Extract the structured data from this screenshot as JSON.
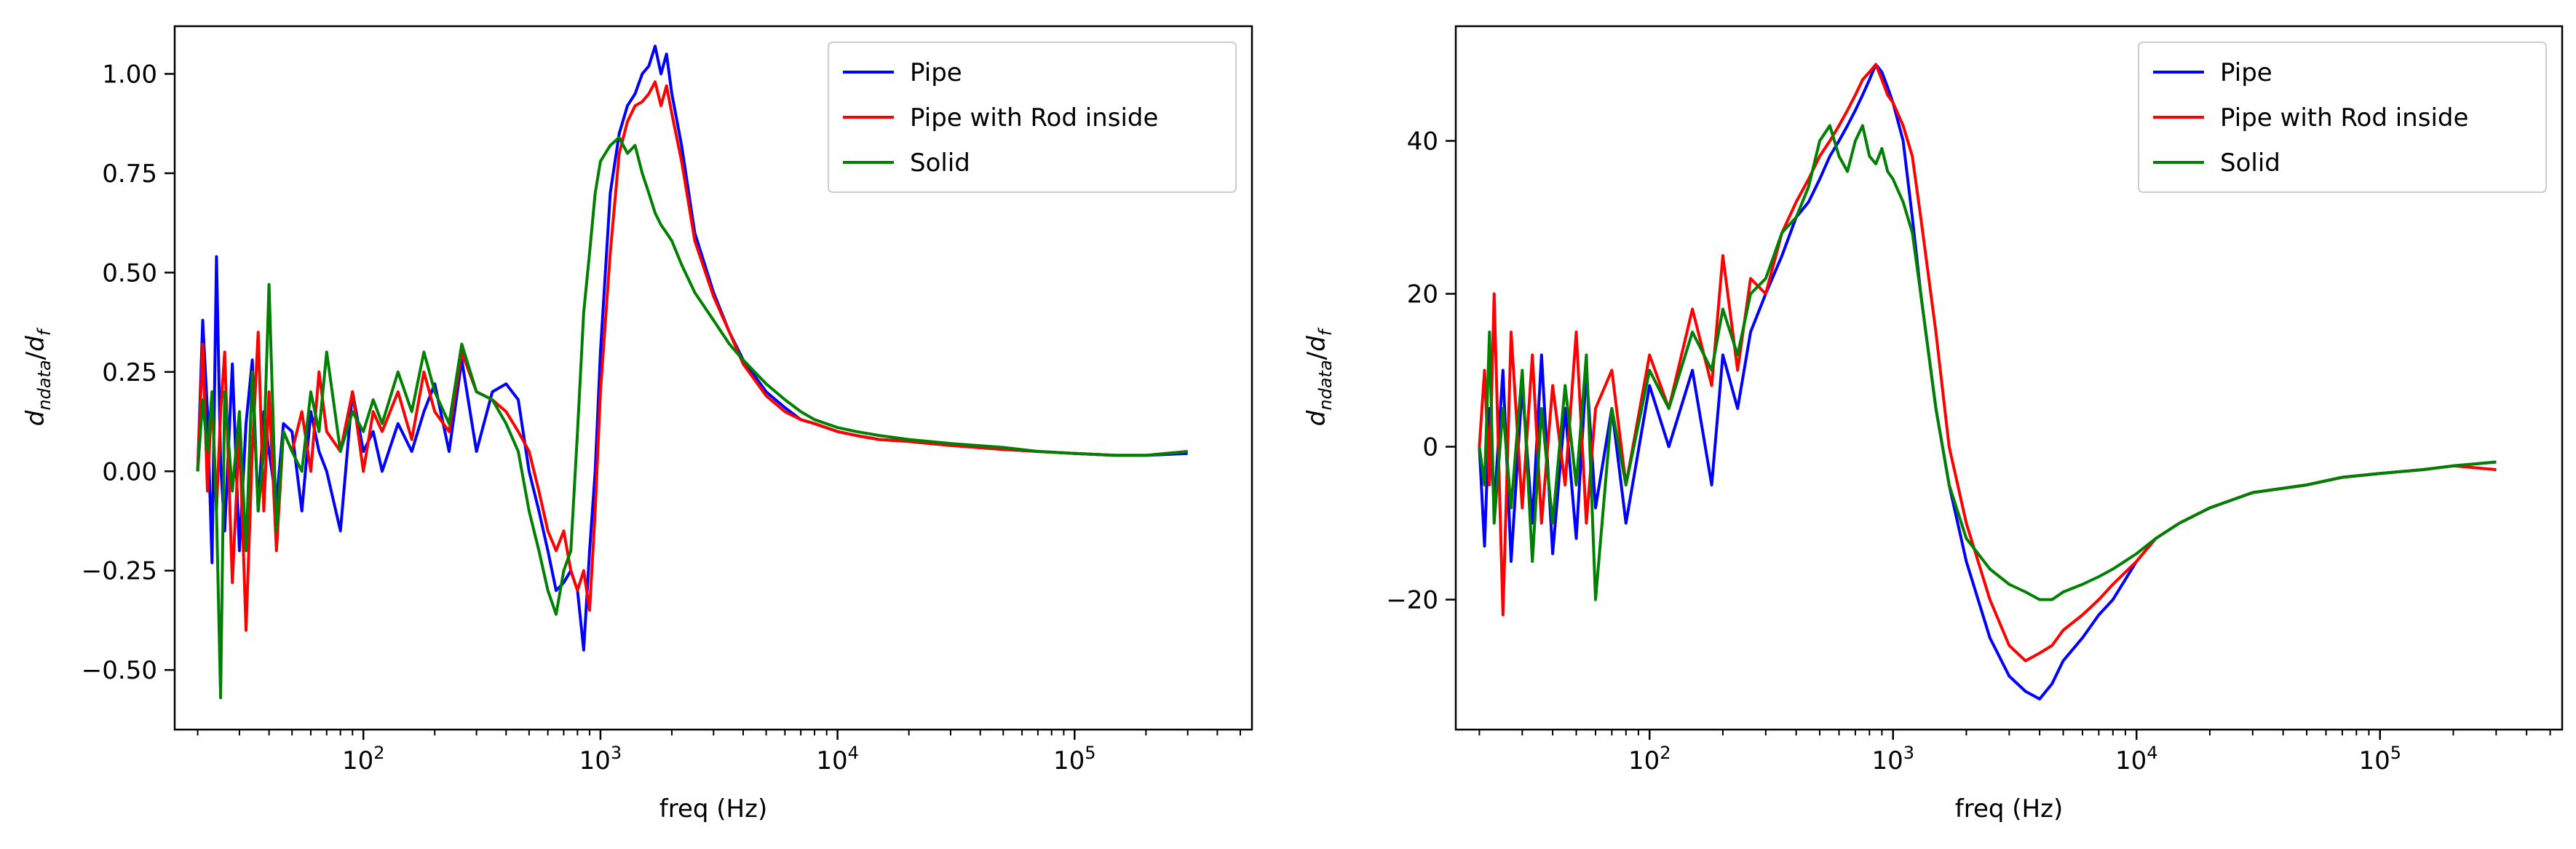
{
  "chart_data": [
    {
      "type": "line",
      "xlabel": "freq (Hz)",
      "ylabel": "d_{ndata}/d_f",
      "xscale": "log",
      "xlim": [
        16,
        560000
      ],
      "ylim": [
        -0.65,
        1.12
      ],
      "xticks": [
        {
          "value": 100,
          "base": "10",
          "exp": "2"
        },
        {
          "value": 1000,
          "base": "10",
          "exp": "3"
        },
        {
          "value": 10000,
          "base": "10",
          "exp": "4"
        },
        {
          "value": 100000,
          "base": "10",
          "exp": "5"
        }
      ],
      "yticks": [
        {
          "value": -0.5,
          "label": "−0.50"
        },
        {
          "value": -0.25,
          "label": "−0.25"
        },
        {
          "value": 0.0,
          "label": "0.00"
        },
        {
          "value": 0.25,
          "label": "0.25"
        },
        {
          "value": 0.5,
          "label": "0.50"
        },
        {
          "value": 0.75,
          "label": "0.75"
        },
        {
          "value": 1.0,
          "label": "1.00"
        }
      ],
      "legend_position": "upper right",
      "grid": false,
      "series": [
        {
          "name": "Pipe",
          "color": "#0000ff",
          "x": [
            20,
            21,
            22,
            23,
            24,
            25,
            26,
            28,
            30,
            32,
            34,
            36,
            38,
            40,
            43,
            46,
            50,
            55,
            60,
            65,
            70,
            80,
            90,
            100,
            110,
            120,
            140,
            160,
            180,
            200,
            230,
            260,
            300,
            350,
            400,
            450,
            500,
            550,
            600,
            650,
            700,
            750,
            800,
            850,
            900,
            950,
            1000,
            1100,
            1200,
            1300,
            1400,
            1500,
            1600,
            1700,
            1800,
            1900,
            2000,
            2200,
            2500,
            3000,
            3500,
            4000,
            5000,
            6000,
            7000,
            8000,
            10000,
            12000,
            15000,
            20000,
            30000,
            50000,
            70000,
            100000,
            150000,
            200000,
            300000
          ],
          "y": [
            0.0,
            0.38,
            0.15,
            -0.23,
            0.54,
            0.02,
            -0.15,
            0.27,
            -0.2,
            0.12,
            0.28,
            -0.1,
            0.15,
            0.05,
            -0.08,
            0.12,
            0.1,
            -0.1,
            0.15,
            0.05,
            0.0,
            -0.15,
            0.2,
            0.05,
            0.1,
            0.0,
            0.12,
            0.05,
            0.15,
            0.22,
            0.05,
            0.28,
            0.05,
            0.2,
            0.22,
            0.18,
            0.0,
            -0.1,
            -0.2,
            -0.3,
            -0.28,
            -0.25,
            -0.3,
            -0.45,
            -0.2,
            0.0,
            0.3,
            0.7,
            0.85,
            0.92,
            0.95,
            1.0,
            1.02,
            1.07,
            1.0,
            1.05,
            0.95,
            0.82,
            0.6,
            0.45,
            0.35,
            0.28,
            0.2,
            0.16,
            0.13,
            0.12,
            0.1,
            0.09,
            0.08,
            0.075,
            0.065,
            0.055,
            0.05,
            0.045,
            0.04,
            0.04,
            0.045
          ]
        },
        {
          "name": "Pipe with Rod inside",
          "color": "#ff0000",
          "x": [
            20,
            21,
            22,
            23,
            24,
            25,
            26,
            28,
            30,
            32,
            34,
            36,
            38,
            40,
            43,
            46,
            50,
            55,
            60,
            65,
            70,
            80,
            90,
            100,
            110,
            120,
            140,
            160,
            180,
            200,
            230,
            260,
            300,
            350,
            400,
            450,
            500,
            550,
            600,
            650,
            700,
            750,
            800,
            850,
            900,
            950,
            1000,
            1100,
            1200,
            1300,
            1400,
            1500,
            1600,
            1700,
            1800,
            1900,
            2000,
            2200,
            2500,
            3000,
            3500,
            4000,
            5000,
            6000,
            7000,
            8000,
            10000,
            12000,
            15000,
            20000,
            30000,
            50000,
            70000,
            100000,
            150000,
            200000,
            300000
          ],
          "y": [
            0.0,
            0.32,
            -0.05,
            0.2,
            -0.1,
            0.15,
            0.3,
            -0.28,
            0.1,
            -0.4,
            0.05,
            0.35,
            -0.1,
            0.2,
            -0.2,
            0.1,
            0.05,
            0.15,
            0.0,
            0.25,
            0.1,
            0.05,
            0.2,
            0.0,
            0.15,
            0.1,
            0.2,
            0.08,
            0.25,
            0.15,
            0.1,
            0.3,
            0.2,
            0.18,
            0.15,
            0.1,
            0.05,
            -0.05,
            -0.15,
            -0.2,
            -0.15,
            -0.25,
            -0.3,
            -0.25,
            -0.35,
            -0.1,
            0.2,
            0.55,
            0.8,
            0.88,
            0.92,
            0.93,
            0.95,
            0.98,
            0.92,
            0.97,
            0.9,
            0.78,
            0.58,
            0.44,
            0.35,
            0.27,
            0.19,
            0.15,
            0.13,
            0.12,
            0.1,
            0.09,
            0.08,
            0.075,
            0.065,
            0.055,
            0.05,
            0.045,
            0.04,
            0.04,
            0.05
          ]
        },
        {
          "name": "Solid",
          "color": "#008000",
          "x": [
            20,
            21,
            22,
            23,
            24,
            25,
            26,
            28,
            30,
            32,
            34,
            36,
            38,
            40,
            43,
            46,
            50,
            55,
            60,
            65,
            70,
            80,
            90,
            100,
            110,
            120,
            140,
            160,
            180,
            200,
            230,
            260,
            300,
            350,
            400,
            450,
            500,
            550,
            600,
            650,
            700,
            750,
            800,
            850,
            900,
            950,
            1000,
            1100,
            1200,
            1300,
            1400,
            1500,
            1600,
            1700,
            1800,
            1900,
            2000,
            2200,
            2500,
            3000,
            3500,
            4000,
            5000,
            6000,
            7000,
            8000,
            10000,
            12000,
            15000,
            20000,
            30000,
            50000,
            70000,
            100000,
            150000,
            200000,
            300000
          ],
          "y": [
            0.0,
            0.18,
            0.05,
            0.2,
            -0.1,
            -0.57,
            0.2,
            -0.05,
            0.15,
            -0.2,
            0.25,
            -0.1,
            0.05,
            0.47,
            -0.15,
            0.1,
            0.05,
            0.0,
            0.2,
            0.1,
            0.3,
            0.05,
            0.15,
            0.1,
            0.18,
            0.12,
            0.25,
            0.15,
            0.3,
            0.2,
            0.12,
            0.32,
            0.2,
            0.18,
            0.12,
            0.05,
            -0.1,
            -0.2,
            -0.3,
            -0.36,
            -0.25,
            -0.2,
            0.1,
            0.4,
            0.55,
            0.7,
            0.78,
            0.82,
            0.84,
            0.8,
            0.82,
            0.75,
            0.7,
            0.65,
            0.62,
            0.6,
            0.58,
            0.52,
            0.45,
            0.38,
            0.32,
            0.28,
            0.22,
            0.18,
            0.15,
            0.13,
            0.11,
            0.1,
            0.09,
            0.08,
            0.07,
            0.06,
            0.05,
            0.045,
            0.04,
            0.04,
            0.05
          ]
        }
      ]
    },
    {
      "type": "line",
      "xlabel": "freq (Hz)",
      "ylabel": "d_{ndata}/d_f",
      "xscale": "log",
      "xlim": [
        16,
        560000
      ],
      "ylim": [
        -37,
        55
      ],
      "xticks": [
        {
          "value": 100,
          "base": "10",
          "exp": "2"
        },
        {
          "value": 1000,
          "base": "10",
          "exp": "3"
        },
        {
          "value": 10000,
          "base": "10",
          "exp": "4"
        },
        {
          "value": 100000,
          "base": "10",
          "exp": "5"
        }
      ],
      "yticks": [
        {
          "value": -20,
          "label": "−20"
        },
        {
          "value": 0,
          "label": "0"
        },
        {
          "value": 20,
          "label": "20"
        },
        {
          "value": 40,
          "label": "40"
        }
      ],
      "legend_position": "upper right",
      "grid": false,
      "series": [
        {
          "name": "Pipe",
          "color": "#0000ff",
          "x": [
            20,
            21,
            22,
            23,
            25,
            27,
            30,
            33,
            36,
            40,
            45,
            50,
            55,
            60,
            70,
            80,
            100,
            120,
            150,
            180,
            200,
            230,
            260,
            300,
            350,
            400,
            450,
            500,
            550,
            600,
            650,
            700,
            750,
            800,
            850,
            900,
            950,
            1000,
            1100,
            1200,
            1300,
            1500,
            1700,
            2000,
            2500,
            3000,
            3500,
            4000,
            4500,
            5000,
            6000,
            7000,
            8000,
            10000,
            12000,
            15000,
            20000,
            30000,
            50000,
            70000,
            100000,
            150000,
            200000,
            300000
          ],
          "y": [
            0,
            -13,
            5,
            -8,
            10,
            -15,
            8,
            -10,
            12,
            -14,
            5,
            -12,
            10,
            -8,
            5,
            -10,
            8,
            0,
            10,
            -5,
            12,
            5,
            15,
            20,
            25,
            30,
            32,
            35,
            38,
            40,
            42,
            44,
            46,
            48,
            50,
            49,
            47,
            45,
            40,
            30,
            20,
            5,
            -5,
            -15,
            -25,
            -30,
            -32,
            -33,
            -31,
            -28,
            -25,
            -22,
            -20,
            -15,
            -12,
            -10,
            -8,
            -6,
            -5,
            -4,
            -3.5,
            -3,
            -2.5,
            -2
          ]
        },
        {
          "name": "Pipe with Rod inside",
          "color": "#ff0000",
          "x": [
            20,
            21,
            22,
            23,
            25,
            27,
            30,
            33,
            36,
            40,
            45,
            50,
            55,
            60,
            70,
            80,
            100,
            120,
            150,
            180,
            200,
            230,
            260,
            300,
            350,
            400,
            450,
            500,
            550,
            600,
            650,
            700,
            750,
            800,
            850,
            900,
            950,
            1000,
            1100,
            1200,
            1300,
            1500,
            1700,
            2000,
            2500,
            3000,
            3500,
            4000,
            4500,
            5000,
            6000,
            7000,
            8000,
            10000,
            12000,
            15000,
            20000,
            30000,
            50000,
            70000,
            100000,
            150000,
            200000,
            300000
          ],
          "y": [
            0,
            10,
            -5,
            20,
            -22,
            15,
            -8,
            12,
            -10,
            8,
            -5,
            15,
            -10,
            5,
            10,
            -5,
            12,
            5,
            18,
            8,
            25,
            10,
            22,
            20,
            28,
            32,
            35,
            38,
            40,
            42,
            44,
            46,
            48,
            49,
            50,
            48,
            46,
            45,
            42,
            38,
            30,
            15,
            0,
            -10,
            -20,
            -26,
            -28,
            -27,
            -26,
            -24,
            -22,
            -20,
            -18,
            -15,
            -12,
            -10,
            -8,
            -6,
            -5,
            -4,
            -3.5,
            -3,
            -2.5,
            -3
          ]
        },
        {
          "name": "Solid",
          "color": "#008000",
          "x": [
            20,
            21,
            22,
            23,
            25,
            27,
            30,
            33,
            36,
            40,
            45,
            50,
            55,
            60,
            70,
            80,
            100,
            120,
            150,
            180,
            200,
            230,
            260,
            300,
            350,
            400,
            450,
            500,
            550,
            600,
            650,
            700,
            750,
            800,
            850,
            900,
            950,
            1000,
            1100,
            1200,
            1300,
            1500,
            1700,
            2000,
            2500,
            3000,
            3500,
            4000,
            4500,
            5000,
            6000,
            7000,
            8000,
            10000,
            12000,
            15000,
            20000,
            30000,
            50000,
            70000,
            100000,
            150000,
            200000,
            300000
          ],
          "y": [
            0,
            -5,
            15,
            -10,
            5,
            -8,
            10,
            -15,
            5,
            -10,
            8,
            -5,
            12,
            -20,
            5,
            -5,
            10,
            5,
            15,
            10,
            18,
            12,
            20,
            22,
            28,
            30,
            34,
            40,
            42,
            38,
            36,
            40,
            42,
            38,
            37,
            39,
            36,
            35,
            32,
            28,
            20,
            5,
            -5,
            -12,
            -16,
            -18,
            -19,
            -20,
            -20,
            -19,
            -18,
            -17,
            -16,
            -14,
            -12,
            -10,
            -8,
            -6,
            -5,
            -4,
            -3.5,
            -3,
            -2.5,
            -2
          ]
        }
      ]
    }
  ]
}
